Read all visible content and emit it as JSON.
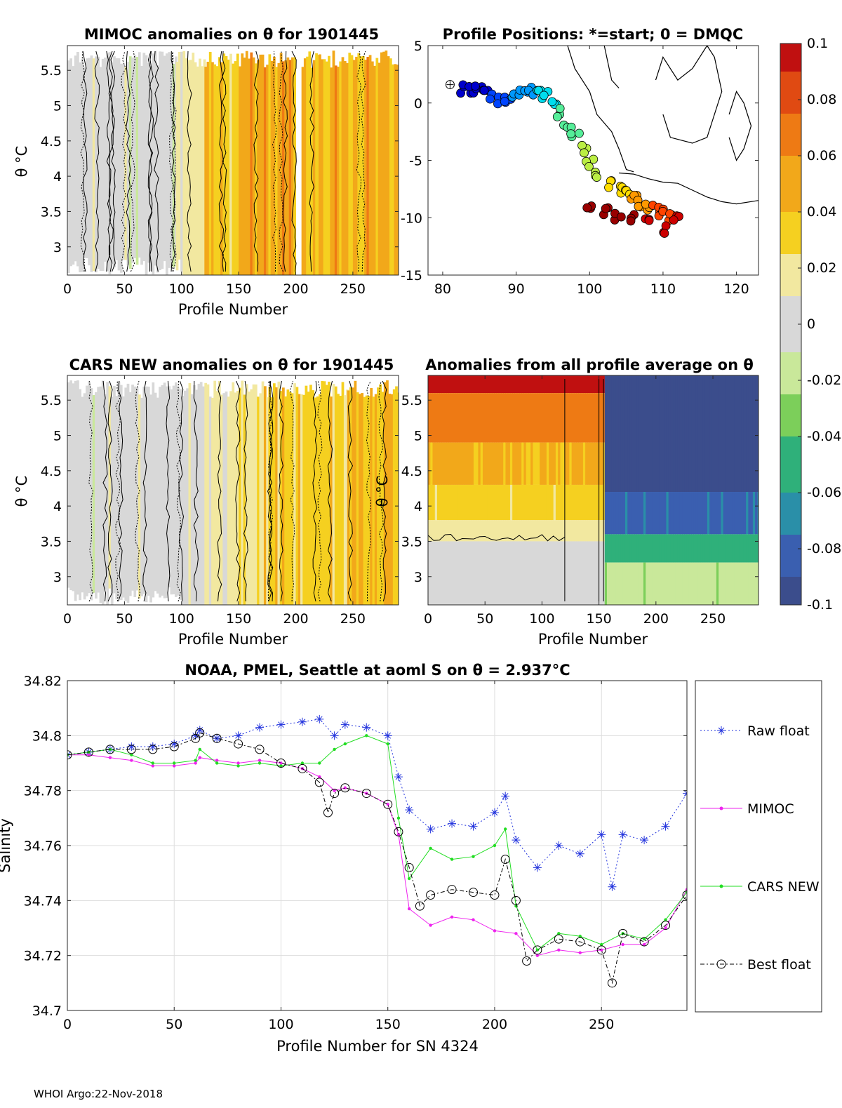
{
  "footer": "WHOI Argo:22-Nov-2018",
  "panels": {
    "mimoc": {
      "title": "MIMOC anomalies on θ  for 1901445",
      "xlabel": "Profile Number",
      "ylabel": "θ °C"
    },
    "positions": {
      "title": "Profile Positions: *=start; 0 = DMQC"
    },
    "cars": {
      "title": "CARS NEW anomalies on θ for 1901445",
      "xlabel": "Profile Number",
      "ylabel": "θ °C"
    },
    "allavg": {
      "title": "Anomalies from all profile average on θ",
      "xlabel": "Profile Number",
      "ylabel": "θ °C"
    },
    "salinity": {
      "title": "NOAA, PMEL, Seattle at aoml S on θ = 2.937°C",
      "xlabel": "Profile Number for SN 4324",
      "ylabel": "Salinity"
    }
  },
  "colors": {
    "raw": "#2233dd",
    "mimoc": "#ee22ee",
    "cars": "#22dd22",
    "best": "#000000",
    "colormap": [
      "#3b4d8c",
      "#3a5fb0",
      "#2a8fa8",
      "#2fb07a",
      "#7ccf5a",
      "#c9e89a",
      "#d8d8d8",
      "#f2e8a0",
      "#f5d020",
      "#f2a81a",
      "#ee7a14",
      "#e04a12",
      "#c01010"
    ]
  },
  "chart_data": [
    {
      "type": "heatmap",
      "id": "mimoc",
      "title": "MIMOC anomalies on θ  for 1901445",
      "xlabel": "Profile Number",
      "ylabel": "θ °C",
      "xlim": [
        0,
        290
      ],
      "ylim": [
        2.6,
        5.85
      ],
      "xticks": [
        0,
        50,
        100,
        150,
        200,
        250
      ],
      "yticks": [
        3,
        3.5,
        4,
        4.5,
        5,
        5.5
      ],
      "segments": [
        {
          "from": 0,
          "to": 95,
          "value": 0.0
        },
        {
          "from": 95,
          "to": 120,
          "value": 0.012
        },
        {
          "from": 120,
          "to": 150,
          "value": 0.035
        },
        {
          "from": 150,
          "to": 200,
          "value": 0.05
        },
        {
          "from": 200,
          "to": 205,
          "value": null
        },
        {
          "from": 205,
          "to": 220,
          "value": 0.04
        },
        {
          "from": 220,
          "to": 290,
          "value": 0.048
        }
      ]
    },
    {
      "type": "scatter",
      "id": "positions",
      "title": "Profile Positions: *=start; 0 = DMQC",
      "xlim": [
        78,
        123
      ],
      "ylim": [
        -15,
        5
      ],
      "xticks": [
        80,
        90,
        100,
        110,
        120
      ],
      "yticks": [
        5,
        0,
        -5,
        -10,
        -15
      ],
      "start": [
        81,
        1.6
      ],
      "track": [
        [
          83,
          1.2
        ],
        [
          84,
          1.1
        ],
        [
          85,
          1.3
        ],
        [
          86,
          0.9
        ],
        [
          87,
          0.5
        ],
        [
          88,
          0.3
        ],
        [
          89,
          0.2
        ],
        [
          90,
          0.6
        ],
        [
          91,
          0.9
        ],
        [
          92,
          1.1
        ],
        [
          93,
          0.8
        ],
        [
          94,
          0.6
        ],
        [
          95,
          0.1
        ],
        [
          96,
          -0.8
        ],
        [
          97,
          -2.0
        ],
        [
          98,
          -3.0
        ],
        [
          99,
          -4.0
        ],
        [
          100,
          -5.2
        ],
        [
          101,
          -6.3
        ],
        [
          103,
          -7.0
        ],
        [
          104,
          -7.5
        ],
        [
          105,
          -8.0
        ],
        [
          106,
          -8.4
        ],
        [
          107,
          -8.8
        ],
        [
          108,
          -9.0
        ],
        [
          109,
          -9.3
        ],
        [
          110,
          -9.6
        ],
        [
          111,
          -9.9
        ],
        [
          112,
          -10.2
        ],
        [
          110,
          -11.0
        ],
        [
          108,
          -10.5
        ],
        [
          106,
          -10.0
        ],
        [
          104,
          -9.8
        ],
        [
          102,
          -9.4
        ],
        [
          100,
          -9.3
        ]
      ]
    },
    {
      "type": "heatmap",
      "id": "cars",
      "title": "CARS NEW anomalies on θ for 1901445",
      "xlabel": "Profile Number",
      "ylabel": "θ °C",
      "xlim": [
        0,
        290
      ],
      "ylim": [
        2.6,
        5.85
      ],
      "xticks": [
        0,
        50,
        100,
        150,
        200,
        250
      ],
      "yticks": [
        3,
        3.5,
        4,
        4.5,
        5,
        5.5
      ],
      "segments": [
        {
          "from": 0,
          "to": 120,
          "value": 0.0
        },
        {
          "from": 120,
          "to": 150,
          "value": 0.015
        },
        {
          "from": 150,
          "to": 200,
          "value": 0.028
        },
        {
          "from": 200,
          "to": 245,
          "value": 0.035
        },
        {
          "from": 245,
          "to": 290,
          "value": 0.04
        }
      ]
    },
    {
      "type": "heatmap",
      "id": "allavg",
      "title": "Anomalies from all profile average on θ",
      "xlabel": "Profile Number",
      "ylabel": "θ °C",
      "xlim": [
        0,
        290
      ],
      "ylim": [
        2.6,
        5.85
      ],
      "xticks": [
        0,
        50,
        100,
        150,
        200,
        250
      ],
      "yticks": [
        3,
        3.5,
        4,
        4.5,
        5,
        5.5
      ],
      "bands_left": [
        {
          "theta_from": 5.6,
          "theta_to": 5.85,
          "value": 0.1
        },
        {
          "theta_from": 4.9,
          "theta_to": 5.6,
          "value": 0.065
        },
        {
          "theta_from": 4.3,
          "theta_to": 4.9,
          "value": 0.045
        },
        {
          "theta_from": 3.8,
          "theta_to": 4.3,
          "value": 0.03
        },
        {
          "theta_from": 3.5,
          "theta_to": 3.8,
          "value": 0.015
        },
        {
          "theta_from": 2.6,
          "theta_to": 3.5,
          "value": 0.0
        }
      ],
      "bands_right": [
        {
          "theta_from": 4.2,
          "theta_to": 5.85,
          "value": -0.1
        },
        {
          "theta_from": 3.6,
          "theta_to": 4.2,
          "value": -0.08
        },
        {
          "theta_from": 3.2,
          "theta_to": 3.6,
          "value": -0.05
        },
        {
          "theta_from": 2.6,
          "theta_to": 3.2,
          "value": -0.02
        }
      ],
      "split_profile": 155
    },
    {
      "type": "colorbar",
      "id": "colorbar",
      "clim": [
        -0.1,
        0.1
      ],
      "ticks": [
        "0.1",
        "0.08",
        "0.06",
        "0.04",
        "0.02",
        "0",
        "-0.02",
        "-0.04",
        "-0.06",
        "-0.08",
        "-0.1"
      ]
    },
    {
      "type": "line",
      "id": "salinity",
      "title": "NOAA, PMEL, Seattle at aoml S on θ = 2.937°C",
      "xlabel": "Profile Number for SN 4324",
      "ylabel": "Salinity",
      "xlim": [
        0,
        290
      ],
      "ylim": [
        34.7,
        34.82
      ],
      "xticks": [
        "0",
        "50",
        "100",
        "150",
        "200",
        "250"
      ],
      "yticks": [
        "34.7",
        "34.72",
        "34.74",
        "34.76",
        "34.78",
        "34.8",
        "34.82"
      ],
      "grid": true,
      "legend": [
        "Raw float",
        "MIMOC",
        "CARS NEW",
        "Best float"
      ],
      "series": [
        {
          "name": "Raw float",
          "x": [
            0,
            10,
            20,
            30,
            40,
            50,
            60,
            62,
            70,
            80,
            90,
            100,
            110,
            118,
            125,
            130,
            140,
            150,
            155,
            160,
            170,
            180,
            190,
            200,
            205,
            210,
            220,
            230,
            240,
            250,
            255,
            260,
            270,
            280,
            290
          ],
          "y": [
            34.793,
            34.794,
            34.795,
            34.796,
            34.796,
            34.797,
            34.8,
            34.802,
            34.799,
            34.8,
            34.803,
            34.804,
            34.805,
            34.806,
            34.8,
            34.804,
            34.803,
            34.8,
            34.785,
            34.773,
            34.766,
            34.768,
            34.767,
            34.772,
            34.778,
            34.762,
            34.752,
            34.76,
            34.757,
            34.764,
            34.745,
            34.764,
            34.762,
            34.767,
            34.779
          ]
        },
        {
          "name": "MIMOC",
          "x": [
            0,
            10,
            20,
            30,
            40,
            50,
            60,
            62,
            70,
            80,
            90,
            100,
            110,
            118,
            125,
            130,
            140,
            150,
            155,
            160,
            170,
            180,
            190,
            200,
            205,
            210,
            220,
            230,
            240,
            250,
            260,
            270,
            280,
            290
          ],
          "y": [
            34.793,
            34.793,
            34.792,
            34.791,
            34.789,
            34.789,
            34.79,
            34.792,
            34.791,
            34.79,
            34.791,
            34.79,
            34.788,
            34.785,
            34.78,
            34.781,
            34.779,
            34.775,
            34.764,
            34.737,
            34.731,
            34.734,
            34.733,
            34.729,
            null,
            34.728,
            34.72,
            34.722,
            34.721,
            34.722,
            34.724,
            34.724,
            34.73,
            34.744
          ]
        },
        {
          "name": "CARS NEW",
          "x": [
            0,
            10,
            20,
            30,
            40,
            50,
            60,
            62,
            70,
            80,
            90,
            100,
            110,
            118,
            125,
            130,
            140,
            150,
            155,
            160,
            170,
            180,
            190,
            200,
            205,
            210,
            220,
            230,
            240,
            250,
            260,
            270,
            280,
            290
          ],
          "y": [
            34.793,
            34.794,
            34.795,
            34.793,
            34.79,
            34.79,
            34.791,
            34.795,
            34.79,
            34.789,
            34.79,
            34.789,
            34.79,
            34.79,
            34.795,
            34.797,
            34.8,
            34.797,
            34.77,
            34.748,
            34.759,
            34.755,
            34.756,
            34.76,
            34.766,
            34.738,
            34.722,
            34.728,
            34.727,
            34.724,
            34.728,
            34.726,
            34.733,
            34.743
          ]
        },
        {
          "name": "Best float",
          "x": [
            0,
            10,
            20,
            30,
            40,
            50,
            60,
            62,
            70,
            80,
            90,
            100,
            110,
            118,
            122,
            125,
            130,
            140,
            150,
            155,
            160,
            165,
            170,
            180,
            190,
            200,
            205,
            210,
            215,
            220,
            230,
            240,
            250,
            255,
            260,
            270,
            280,
            290
          ],
          "y": [
            34.793,
            34.794,
            34.795,
            34.795,
            34.795,
            34.796,
            34.799,
            34.801,
            34.799,
            34.797,
            34.795,
            34.79,
            34.788,
            34.783,
            34.772,
            34.779,
            34.781,
            34.779,
            34.775,
            34.765,
            34.752,
            34.738,
            34.742,
            34.744,
            34.743,
            34.742,
            34.755,
            34.74,
            34.718,
            34.722,
            34.726,
            34.725,
            34.722,
            34.71,
            34.728,
            34.725,
            34.731,
            34.742
          ]
        }
      ]
    }
  ]
}
